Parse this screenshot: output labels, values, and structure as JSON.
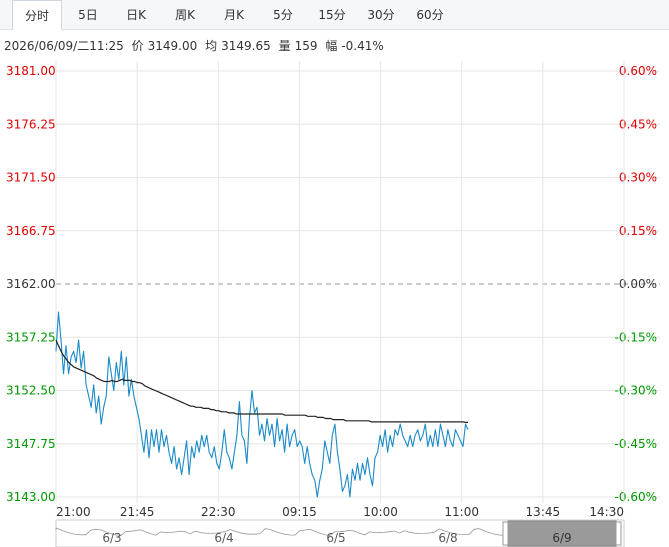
{
  "tabs": [
    {
      "label": "分时",
      "active": true
    },
    {
      "label": "5日",
      "active": false
    },
    {
      "label": "日K",
      "active": false
    },
    {
      "label": "周K",
      "active": false
    },
    {
      "label": "月K",
      "active": false
    },
    {
      "label": "5分",
      "active": false
    },
    {
      "label": "15分",
      "active": false
    },
    {
      "label": "30分",
      "active": false
    },
    {
      "label": "60分",
      "active": false
    }
  ],
  "info": {
    "datetime": "2026/06/09/二11:25",
    "price_label": "价",
    "price": "3149.00",
    "avg_label": "均",
    "avg": "3149.65",
    "volume_label": "量",
    "volume": "159",
    "change_label": "幅",
    "change": "-0.41%"
  },
  "colors": {
    "up": "#e00000",
    "down": "#009900",
    "neutral": "#333333",
    "price_line": "#1a8ac8",
    "avg_line": "#222222",
    "grid": "#e6e6e6"
  },
  "chart_data": {
    "type": "line",
    "prev_close": 3162.0,
    "ylim": [
      3143.0,
      3181.0
    ],
    "y_ticks": [
      "3181.00",
      "3176.25",
      "3171.50",
      "3166.75",
      "3162.00",
      "3157.25",
      "3152.50",
      "3147.75",
      "3143.00"
    ],
    "pct_ticks": [
      "0.60%",
      "0.45%",
      "0.30%",
      "0.15%",
      "0.00%",
      "-0.15%",
      "-0.30%",
      "-0.45%",
      "-0.60%"
    ],
    "x_ticks": [
      "21:00",
      "21:45",
      "22:30",
      "09:15",
      "10:00",
      "11:00",
      "13:45",
      "14:30"
    ],
    "session_minutes": 345,
    "series": [
      {
        "name": "price",
        "values": [
          3156,
          3159.5,
          3157,
          3154,
          3156.5,
          3154,
          3155.5,
          3156,
          3155,
          3157,
          3154.5,
          3156,
          3153,
          3152,
          3151,
          3153,
          3150.5,
          3152,
          3149.5,
          3151,
          3152,
          3155.5,
          3154,
          3152.5,
          3155,
          3153.5,
          3156,
          3153,
          3155.5,
          3152,
          3153.5,
          3152,
          3151,
          3150,
          3148.5,
          3147,
          3149,
          3146.5,
          3149,
          3147.5,
          3149,
          3147,
          3149,
          3147.5,
          3148.5,
          3147,
          3146,
          3147.5,
          3145.5,
          3146.5,
          3145,
          3146.5,
          3148,
          3145,
          3147.5,
          3146.5,
          3148,
          3147,
          3148.5,
          3147.5,
          3148.5,
          3147,
          3146.5,
          3147.5,
          3146,
          3145.5,
          3147,
          3149,
          3147,
          3146.5,
          3145.5,
          3147,
          3148.5,
          3151.5,
          3148.5,
          3148,
          3146,
          3150,
          3152.5,
          3150.5,
          3151,
          3148.5,
          3149.5,
          3148,
          3150,
          3148.5,
          3149.5,
          3147.5,
          3150,
          3148,
          3149,
          3147,
          3149.5,
          3147.5,
          3148.5,
          3149,
          3147.5,
          3148,
          3147.5,
          3146,
          3147.5,
          3146,
          3145,
          3144.5,
          3143,
          3144.5,
          3145.5,
          3148,
          3147,
          3146,
          3148.5,
          3149.5,
          3147,
          3145.5,
          3143.5,
          3144,
          3145,
          3143,
          3145.5,
          3144.5,
          3146,
          3144.5,
          3146,
          3145,
          3146.5,
          3145,
          3144,
          3146.5,
          3147,
          3148.5,
          3147.5,
          3149,
          3147,
          3148.5,
          3147.5,
          3149,
          3148.5,
          3149.5,
          3148.5,
          3148,
          3147.5,
          3148.5,
          3147.5,
          3148.5,
          3149,
          3148,
          3148.5,
          3149.5,
          3147.5,
          3148.5,
          3147.5,
          3149,
          3147.5,
          3149.5,
          3148.5,
          3147.5,
          3149,
          3148,
          3147.5,
          3149,
          3148.5,
          3148,
          3147.5,
          3149.5,
          3149
        ],
        "color": "#1a8ac8"
      },
      {
        "name": "avg",
        "values": [
          3157,
          3156.5,
          3156,
          3155.6,
          3155.3,
          3155,
          3154.8,
          3154.6,
          3154.5,
          3154.4,
          3154.3,
          3154.2,
          3154.1,
          3154.0,
          3153.9,
          3153.8,
          3153.6,
          3153.5,
          3153.4,
          3153.3,
          3153.3,
          3153.3,
          3153.4,
          3153.3,
          3153.3,
          3153.4,
          3153.5,
          3153.4,
          3153.4,
          3153.4,
          3153.3,
          3153.3,
          3153.2,
          3153.2,
          3153.1,
          3152.9,
          3152.8,
          3152.7,
          3152.6,
          3152.5,
          3152.4,
          3152.3,
          3152.2,
          3152.1,
          3152.0,
          3151.9,
          3151.8,
          3151.7,
          3151.6,
          3151.5,
          3151.4,
          3151.3,
          3151.2,
          3151.1,
          3151.1,
          3151.0,
          3151.0,
          3151.0,
          3150.9,
          3150.9,
          3150.9,
          3150.8,
          3150.8,
          3150.7,
          3150.7,
          3150.6,
          3150.6,
          3150.6,
          3150.5,
          3150.5,
          3150.5,
          3150.4,
          3150.4,
          3150.4,
          3150.4,
          3150.4,
          3150.4,
          3150.4,
          3150.4,
          3150.4,
          3150.4,
          3150.4,
          3150.4,
          3150.4,
          3150.4,
          3150.4,
          3150.4,
          3150.4,
          3150.4,
          3150.4,
          3150.3,
          3150.3,
          3150.3,
          3150.3,
          3150.3,
          3150.3,
          3150.3,
          3150.3,
          3150.3,
          3150.2,
          3150.2,
          3150.2,
          3150.2,
          3150.1,
          3150.1,
          3150.1,
          3150.0,
          3150.0,
          3150.0,
          3149.9,
          3149.9,
          3149.9,
          3149.9,
          3149.9,
          3149.8,
          3149.8,
          3149.8,
          3149.8,
          3149.8,
          3149.8,
          3149.8,
          3149.8,
          3149.8,
          3149.8,
          3149.7,
          3149.7,
          3149.7,
          3149.7,
          3149.7,
          3149.7,
          3149.7,
          3149.7,
          3149.7,
          3149.7,
          3149.7,
          3149.7,
          3149.7,
          3149.7,
          3149.7,
          3149.7,
          3149.7,
          3149.7,
          3149.7,
          3149.7,
          3149.7,
          3149.7,
          3149.7,
          3149.7,
          3149.7,
          3149.7,
          3149.7,
          3149.7,
          3149.7,
          3149.7,
          3149.7,
          3149.7,
          3149.7,
          3149.7,
          3149.7,
          3149.7,
          3149.7,
          3149.65,
          3149.65
        ],
        "color": "#222222"
      }
    ],
    "navigator": {
      "labels": [
        "6/3",
        "6/4",
        "6/5",
        "6/8",
        "6/9"
      ],
      "selected": "6/9"
    }
  }
}
